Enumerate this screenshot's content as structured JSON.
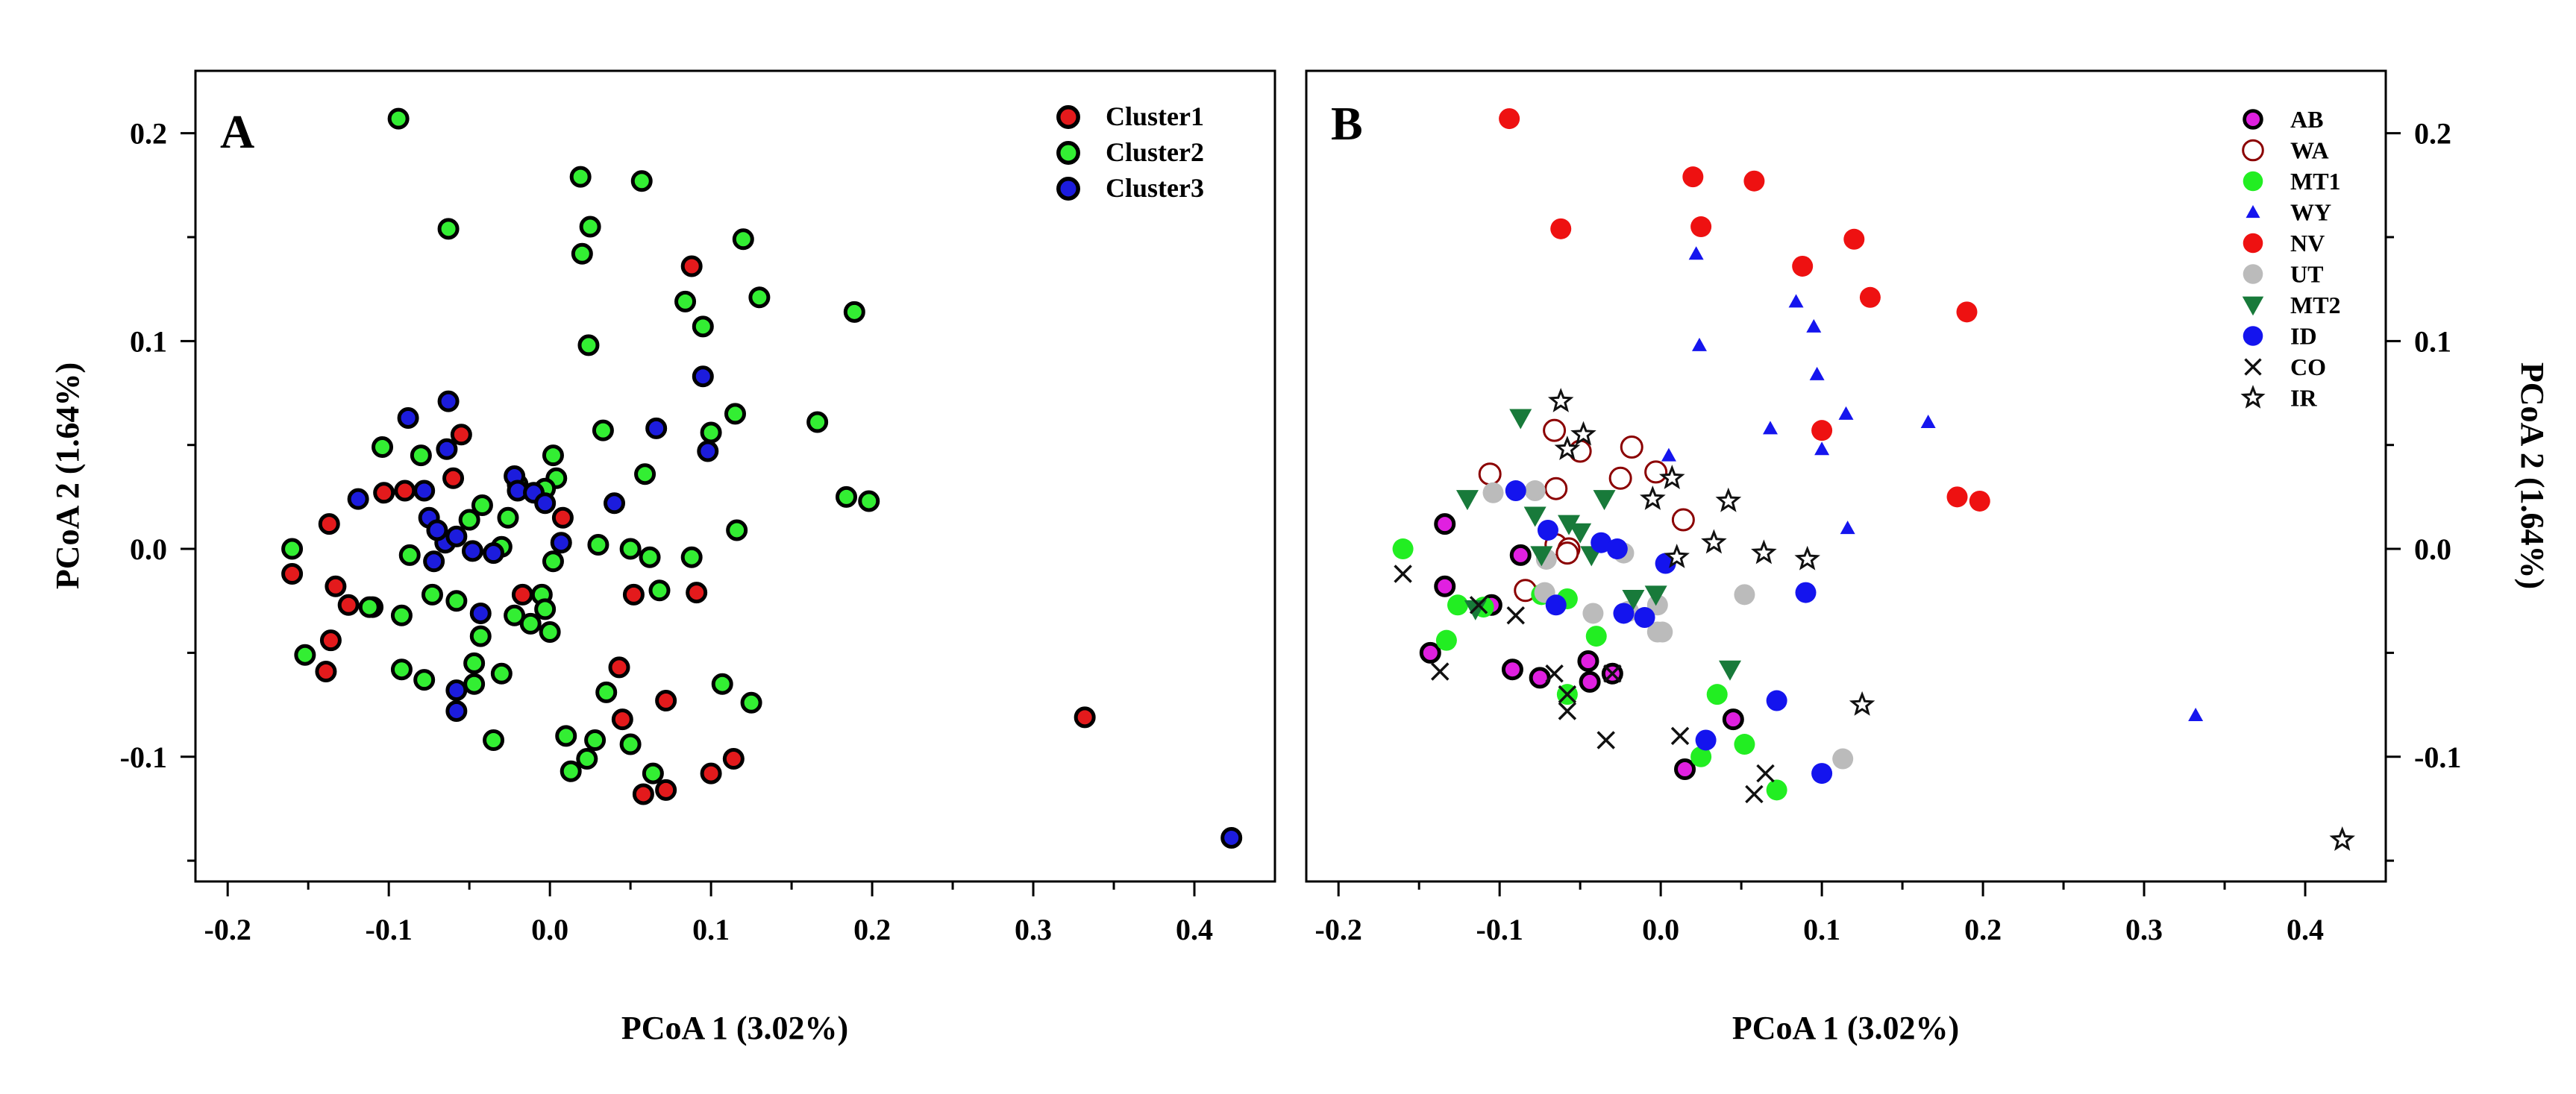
{
  "chart_data": [
    {
      "type": "scatter",
      "panel": "A",
      "xlabel": "PCoA 1 (3.02%)",
      "ylabel": "PCoA 2 (1.64%)",
      "xlim": [
        -0.22,
        0.45
      ],
      "ylim": [
        -0.16,
        0.23
      ],
      "xticks": [
        "-0.2",
        "-0.1",
        "0.0",
        "0.1",
        "0.2",
        "0.3",
        "0.4"
      ],
      "yticks": [
        "-0.1",
        "0.0",
        "0.1",
        "0.2"
      ],
      "legend_position": "top-right",
      "series": [
        {
          "name": "Cluster1",
          "color": "#e31a1c",
          "marker": "circle-outline",
          "points": [
            [
              -0.16,
              -0.012
            ],
            [
              -0.137,
              0.012
            ],
            [
              -0.133,
              -0.018
            ],
            [
              -0.136,
              -0.044
            ],
            [
              -0.139,
              -0.059
            ],
            [
              -0.125,
              -0.027
            ],
            [
              -0.11,
              -0.028
            ],
            [
              -0.103,
              0.027
            ],
            [
              -0.09,
              0.028
            ],
            [
              -0.055,
              0.055
            ],
            [
              -0.06,
              0.034
            ],
            [
              -0.017,
              -0.022
            ],
            [
              0.008,
              0.015
            ],
            [
              0.043,
              -0.057
            ],
            [
              0.045,
              -0.082
            ],
            [
              0.052,
              -0.022
            ],
            [
              0.058,
              -0.118
            ],
            [
              0.072,
              -0.073
            ],
            [
              0.072,
              -0.116
            ],
            [
              0.088,
              0.136
            ],
            [
              0.091,
              -0.021
            ],
            [
              0.1,
              -0.108
            ],
            [
              0.114,
              -0.101
            ],
            [
              0.332,
              -0.081
            ]
          ]
        },
        {
          "name": "Cluster2",
          "color": "#33ee33",
          "marker": "circle-outline",
          "points": [
            [
              -0.094,
              0.207
            ],
            [
              -0.063,
              0.154
            ],
            [
              0.019,
              0.179
            ],
            [
              0.057,
              0.177
            ],
            [
              0.025,
              0.155
            ],
            [
              0.02,
              0.142
            ],
            [
              0.12,
              0.149
            ],
            [
              0.13,
              0.121
            ],
            [
              0.084,
              0.119
            ],
            [
              0.189,
              0.114
            ],
            [
              0.095,
              0.107
            ],
            [
              0.024,
              0.098
            ],
            [
              0.166,
              0.061
            ],
            [
              0.033,
              0.057
            ],
            [
              0.1,
              0.056
            ],
            [
              0.115,
              0.065
            ],
            [
              0.059,
              0.036
            ],
            [
              0.184,
              0.025
            ],
            [
              0.198,
              0.023
            ],
            [
              0.116,
              0.009
            ],
            [
              -0.104,
              0.049
            ],
            [
              -0.08,
              0.045
            ],
            [
              0.002,
              0.045
            ],
            [
              0.004,
              0.034
            ],
            [
              -0.05,
              0.014
            ],
            [
              -0.042,
              0.021
            ],
            [
              -0.026,
              0.015
            ],
            [
              -0.02,
              0.031
            ],
            [
              -0.003,
              0.029
            ],
            [
              -0.16,
              0.0
            ],
            [
              -0.087,
              -0.003
            ],
            [
              -0.03,
              0.001
            ],
            [
              0.002,
              -0.006
            ],
            [
              0.03,
              0.002
            ],
            [
              0.05,
              0.0
            ],
            [
              0.062,
              -0.004
            ],
            [
              0.088,
              -0.004
            ],
            [
              -0.112,
              -0.028
            ],
            [
              -0.092,
              -0.032
            ],
            [
              -0.073,
              -0.022
            ],
            [
              -0.058,
              -0.025
            ],
            [
              -0.022,
              -0.032
            ],
            [
              -0.012,
              -0.036
            ],
            [
              -0.005,
              -0.022
            ],
            [
              -0.003,
              -0.029
            ],
            [
              0.0,
              -0.04
            ],
            [
              -0.043,
              -0.042
            ],
            [
              -0.152,
              -0.051
            ],
            [
              -0.092,
              -0.058
            ],
            [
              -0.078,
              -0.063
            ],
            [
              -0.047,
              -0.055
            ],
            [
              -0.047,
              -0.065
            ],
            [
              -0.03,
              -0.06
            ],
            [
              0.035,
              -0.069
            ],
            [
              0.107,
              -0.065
            ],
            [
              0.125,
              -0.074
            ],
            [
              0.01,
              -0.09
            ],
            [
              0.028,
              -0.092
            ],
            [
              0.05,
              -0.094
            ],
            [
              -0.035,
              -0.092
            ],
            [
              0.023,
              -0.101
            ],
            [
              0.013,
              -0.107
            ],
            [
              0.068,
              -0.02
            ],
            [
              0.064,
              -0.108
            ]
          ]
        },
        {
          "name": "Cluster3",
          "color": "#1c1cdd",
          "marker": "circle-outline",
          "points": [
            [
              -0.088,
              0.063
            ],
            [
              -0.063,
              0.071
            ],
            [
              -0.064,
              0.048
            ],
            [
              -0.119,
              0.024
            ],
            [
              -0.078,
              0.028
            ],
            [
              -0.075,
              0.015
            ],
            [
              -0.065,
              0.003
            ],
            [
              -0.07,
              0.009
            ],
            [
              -0.058,
              0.006
            ],
            [
              -0.048,
              -0.001
            ],
            [
              -0.035,
              -0.002
            ],
            [
              -0.022,
              0.035
            ],
            [
              -0.02,
              0.028
            ],
            [
              -0.01,
              0.027
            ],
            [
              -0.003,
              0.022
            ],
            [
              0.04,
              0.022
            ],
            [
              0.066,
              0.058
            ],
            [
              0.095,
              0.083
            ],
            [
              0.098,
              0.047
            ],
            [
              -0.072,
              -0.006
            ],
            [
              0.007,
              0.003
            ],
            [
              -0.043,
              -0.031
            ],
            [
              -0.058,
              -0.068
            ],
            [
              -0.058,
              -0.078
            ],
            [
              0.423,
              -0.139
            ]
          ]
        }
      ]
    },
    {
      "type": "scatter",
      "panel": "B",
      "xlabel": "PCoA 1 (3.02%)",
      "ylabel": "PCoA 2 (1.64%)",
      "xlim": [
        -0.22,
        0.45
      ],
      "ylim": [
        -0.16,
        0.23
      ],
      "xticks": [
        "-0.2",
        "-0.1",
        "0.0",
        "0.1",
        "0.2",
        "0.3",
        "0.4"
      ],
      "yticks": [
        "-0.1",
        "0.0",
        "0.1",
        "0.2"
      ],
      "legend_position": "top-right",
      "series": [
        {
          "name": "AB",
          "color": "#e020e0",
          "marker": "circle-outline",
          "points": [
            [
              -0.134,
              0.012
            ],
            [
              -0.134,
              -0.018
            ],
            [
              -0.143,
              -0.05
            ],
            [
              -0.105,
              -0.027
            ],
            [
              -0.087,
              -0.003
            ],
            [
              -0.092,
              -0.058
            ],
            [
              -0.075,
              -0.062
            ],
            [
              -0.045,
              -0.054
            ],
            [
              -0.044,
              -0.064
            ],
            [
              -0.03,
              -0.06
            ],
            [
              0.045,
              -0.082
            ],
            [
              0.015,
              -0.106
            ]
          ]
        },
        {
          "name": "WA",
          "color": "#8b0000",
          "marker": "open-circle",
          "points": [
            [
              -0.106,
              0.036
            ],
            [
              -0.066,
              0.057
            ],
            [
              -0.05,
              0.047
            ],
            [
              -0.065,
              0.029
            ],
            [
              -0.065,
              0.002
            ],
            [
              -0.057,
              0.0
            ],
            [
              -0.025,
              0.034
            ],
            [
              -0.018,
              0.049
            ],
            [
              -0.003,
              0.037
            ],
            [
              0.014,
              0.014
            ],
            [
              -0.084,
              -0.02
            ],
            [
              -0.058,
              -0.002
            ]
          ]
        },
        {
          "name": "MT1",
          "color": "#22ee22",
          "marker": "circle",
          "points": [
            [
              -0.16,
              0.0
            ],
            [
              -0.133,
              -0.044
            ],
            [
              -0.126,
              -0.027
            ],
            [
              -0.11,
              -0.028
            ],
            [
              -0.074,
              -0.022
            ],
            [
              -0.058,
              -0.024
            ],
            [
              -0.04,
              -0.042
            ],
            [
              -0.058,
              -0.07
            ],
            [
              0.035,
              -0.07
            ],
            [
              0.052,
              -0.094
            ],
            [
              0.025,
              -0.1
            ],
            [
              0.072,
              -0.116
            ]
          ]
        },
        {
          "name": "WY",
          "color": "#1515ee",
          "marker": "triangle-up",
          "points": [
            [
              0.022,
              0.142
            ],
            [
              0.084,
              0.119
            ],
            [
              0.095,
              0.107
            ],
            [
              0.024,
              0.098
            ],
            [
              0.097,
              0.084
            ],
            [
              0.115,
              0.065
            ],
            [
              0.068,
              0.058
            ],
            [
              0.166,
              0.061
            ],
            [
              0.1,
              0.048
            ],
            [
              0.005,
              0.045
            ],
            [
              0.116,
              0.01
            ],
            [
              0.332,
              -0.08
            ]
          ]
        },
        {
          "name": "NV",
          "color": "#ee1111",
          "marker": "circle",
          "points": [
            [
              -0.094,
              0.207
            ],
            [
              -0.062,
              0.154
            ],
            [
              0.02,
              0.179
            ],
            [
              0.058,
              0.177
            ],
            [
              0.025,
              0.155
            ],
            [
              0.12,
              0.149
            ],
            [
              0.088,
              0.136
            ],
            [
              0.13,
              0.121
            ],
            [
              0.19,
              0.114
            ],
            [
              0.1,
              0.057
            ],
            [
              0.184,
              0.025
            ],
            [
              0.198,
              0.023
            ]
          ]
        },
        {
          "name": "UT",
          "color": "#bbbbbb",
          "marker": "circle",
          "points": [
            [
              -0.104,
              0.027
            ],
            [
              -0.078,
              0.028
            ],
            [
              -0.071,
              -0.005
            ],
            [
              -0.072,
              -0.021
            ],
            [
              -0.042,
              -0.031
            ],
            [
              -0.023,
              -0.002
            ],
            [
              -0.02,
              -0.03
            ],
            [
              -0.002,
              -0.027
            ],
            [
              -0.002,
              -0.04
            ],
            [
              0.052,
              -0.022
            ],
            [
              0.113,
              -0.101
            ],
            [
              0.001,
              -0.04
            ]
          ]
        },
        {
          "name": "MT2",
          "color": "#187a3a",
          "marker": "triangle-down",
          "points": [
            [
              -0.087,
              0.063
            ],
            [
              -0.12,
              0.024
            ],
            [
              -0.078,
              0.016
            ],
            [
              -0.057,
              0.012
            ],
            [
              -0.05,
              0.008
            ],
            [
              -0.035,
              0.024
            ],
            [
              -0.074,
              -0.003
            ],
            [
              -0.043,
              -0.003
            ],
            [
              -0.017,
              -0.024
            ],
            [
              -0.003,
              -0.022
            ],
            [
              -0.115,
              -0.029
            ],
            [
              0.043,
              -0.058
            ]
          ]
        },
        {
          "name": "ID",
          "color": "#1414ee",
          "marker": "circle",
          "points": [
            [
              -0.09,
              0.028
            ],
            [
              -0.07,
              0.009
            ],
            [
              -0.065,
              -0.027
            ],
            [
              -0.037,
              0.003
            ],
            [
              -0.027,
              0.0
            ],
            [
              0.003,
              -0.007
            ],
            [
              -0.023,
              -0.031
            ],
            [
              -0.01,
              -0.033
            ],
            [
              0.09,
              -0.021
            ],
            [
              0.072,
              -0.073
            ],
            [
              0.028,
              -0.092
            ],
            [
              0.1,
              -0.108
            ]
          ]
        },
        {
          "name": "CO",
          "color": "#111111",
          "marker": "x",
          "points": [
            [
              -0.16,
              -0.012
            ],
            [
              -0.137,
              -0.059
            ],
            [
              -0.09,
              -0.032
            ],
            [
              -0.113,
              -0.027
            ],
            [
              -0.066,
              -0.06
            ],
            [
              -0.058,
              -0.078
            ],
            [
              -0.034,
              -0.092
            ],
            [
              -0.03,
              -0.06
            ],
            [
              0.012,
              -0.09
            ],
            [
              0.058,
              -0.118
            ],
            [
              0.065,
              -0.108
            ],
            [
              -0.058,
              -0.07
            ]
          ]
        },
        {
          "name": "IR",
          "color": "#111111",
          "marker": "star",
          "points": [
            [
              -0.062,
              0.071
            ],
            [
              -0.048,
              0.055
            ],
            [
              -0.058,
              0.048
            ],
            [
              -0.005,
              0.024
            ],
            [
              0.007,
              0.034
            ],
            [
              0.042,
              0.023
            ],
            [
              0.01,
              -0.004
            ],
            [
              0.033,
              0.003
            ],
            [
              0.064,
              -0.002
            ],
            [
              0.091,
              -0.005
            ],
            [
              0.125,
              -0.075
            ],
            [
              0.423,
              -0.14
            ]
          ]
        }
      ]
    }
  ]
}
